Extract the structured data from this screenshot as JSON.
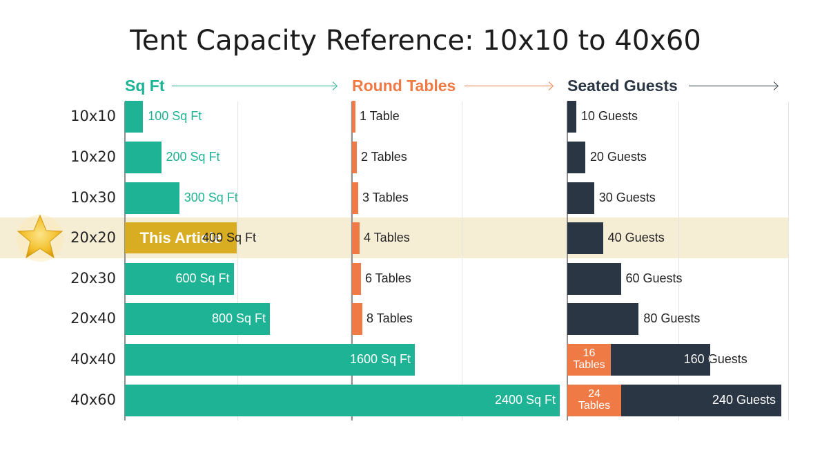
{
  "chart_data": {
    "type": "bar",
    "title": "Tent Capacity Reference: 10x10 to 40x60",
    "categories": [
      "10x10",
      "10x20",
      "10x30",
      "20x20",
      "20x30",
      "20x40",
      "40x40",
      "40x60"
    ],
    "highlight": {
      "category": "20x20",
      "label": "This Article",
      "marker": "star-icon"
    },
    "panels": [
      {
        "name": "Sq Ft",
        "color": "#1db394",
        "values": [
          100,
          200,
          300,
          400,
          600,
          800,
          1600,
          2400
        ],
        "data_labels": [
          "100 Sq Ft",
          "200 Sq Ft",
          "300 Sq Ft",
          "400 Sq Ft",
          "600 Sq Ft",
          "800 Sq Ft",
          "1600 Sq Ft",
          "2400 Sq Ft"
        ]
      },
      {
        "name": "Round Tables",
        "color": "#f07a45",
        "values": [
          1,
          2,
          3,
          4,
          6,
          8,
          16,
          24
        ],
        "data_labels": [
          "1 Table",
          "2 Tables",
          "3 Tables",
          "4 Tables",
          "6 Tables",
          "8 Tables",
          "16 Tables",
          "24 Tables"
        ]
      },
      {
        "name": "Seated Guests",
        "color": "#2b3644",
        "values": [
          10,
          20,
          30,
          40,
          60,
          80,
          160,
          240
        ],
        "data_labels": [
          "10 Guests",
          "20 Guests",
          "30 Guests",
          "40 Guests",
          "60 Guests",
          "80 Guests",
          "160 Guests",
          "240 Guests"
        ],
        "stacked_tables": {
          "16 Tables": "16 Tables",
          "24 Tables": "24 Tables"
        }
      }
    ],
    "colors": {
      "highlight_band": "#f6edd5",
      "highlight_bar": "#d9ad21",
      "star": "#f2c02b"
    }
  }
}
